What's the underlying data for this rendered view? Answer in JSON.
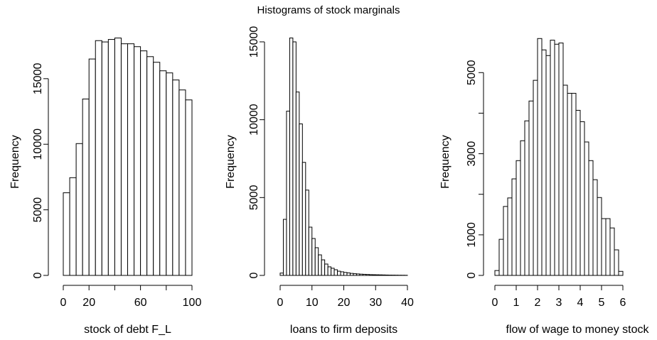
{
  "title": "Histograms of stock marginals",
  "chart_data": [
    {
      "type": "histogram",
      "xlabel": "stock of debt F_L",
      "ylabel": "Frequency",
      "bins": [
        0,
        5,
        10,
        15,
        20,
        25,
        30,
        35,
        40,
        45,
        50,
        55,
        60,
        65,
        70,
        75,
        80,
        85,
        90,
        95,
        100
      ],
      "values": [
        6300,
        7450,
        10050,
        13450,
        16500,
        17900,
        17800,
        17990,
        18100,
        17660,
        17660,
        17440,
        17120,
        16680,
        16250,
        15600,
        15440,
        14900,
        14140,
        13380
      ],
      "color": "#ffffff",
      "xlim": [
        0,
        100
      ],
      "xticks": [
        0,
        20,
        {
          "value": 40
        },
        60,
        {
          "value": 80
        },
        100
      ],
      "ylim": [
        0,
        18400
      ],
      "yticks": [
        0,
        5000,
        10000,
        15000
      ]
    },
    {
      "type": "histogram",
      "xlabel": "loans to firm deposits",
      "ylabel": "Frequency",
      "bins": [
        0,
        1,
        2,
        3,
        4,
        5,
        6,
        7,
        8,
        9,
        10,
        11,
        12,
        13,
        14,
        15,
        16,
        17,
        18,
        19,
        20,
        21,
        22,
        23,
        24,
        25,
        26,
        27,
        28,
        29,
        30,
        31,
        32,
        33,
        34,
        35,
        36,
        37,
        38,
        39,
        40
      ],
      "values": [
        150,
        3600,
        10550,
        15250,
        15000,
        11780,
        9730,
        7260,
        5480,
        3100,
        2370,
        1780,
        1320,
        1000,
        730,
        550,
        460,
        365,
        270,
        230,
        190,
        160,
        130,
        110,
        95,
        80,
        70,
        60,
        50,
        45,
        40,
        35,
        30,
        25,
        20,
        18,
        15,
        12,
        10,
        8
      ],
      "color": "#ffffff",
      "xlim": [
        0,
        40
      ],
      "xticks": [
        0,
        10,
        20,
        30,
        40
      ],
      "ylim": [
        0,
        15500
      ],
      "yticks": [
        0,
        5000,
        10000,
        15000
      ]
    },
    {
      "type": "histogram",
      "xlabel": "flow of wage to money stock",
      "ylabel": "Frequency",
      "bins": [
        0,
        0.2,
        0.4,
        0.6,
        0.8,
        1,
        1.2,
        1.4,
        1.6,
        1.8,
        2,
        2.2,
        2.4,
        2.6,
        2.8,
        3,
        3.2,
        3.4,
        3.6,
        3.8,
        4,
        4.2,
        4.4,
        4.6,
        4.8,
        5,
        5.2,
        5.4,
        5.6,
        5.8,
        6
      ],
      "values": [
        120,
        890,
        1700,
        1910,
        2380,
        2830,
        3320,
        3810,
        4300,
        4810,
        5840,
        5560,
        5420,
        5800,
        5700,
        5730,
        4690,
        4490,
        4490,
        4070,
        3790,
        3290,
        2830,
        2360,
        1920,
        1400,
        1400,
        1170,
        630,
        100
      ],
      "color": "#ffffff",
      "xlim": [
        0,
        6
      ],
      "xticks": [
        0,
        1,
        2,
        3,
        4,
        5,
        6
      ],
      "ylim": [
        0,
        5950
      ],
      "yticks": [
        0,
        1000,
        {
          "value": 2000
        },
        3000,
        {
          "value": 4000
        },
        5000
      ]
    }
  ]
}
